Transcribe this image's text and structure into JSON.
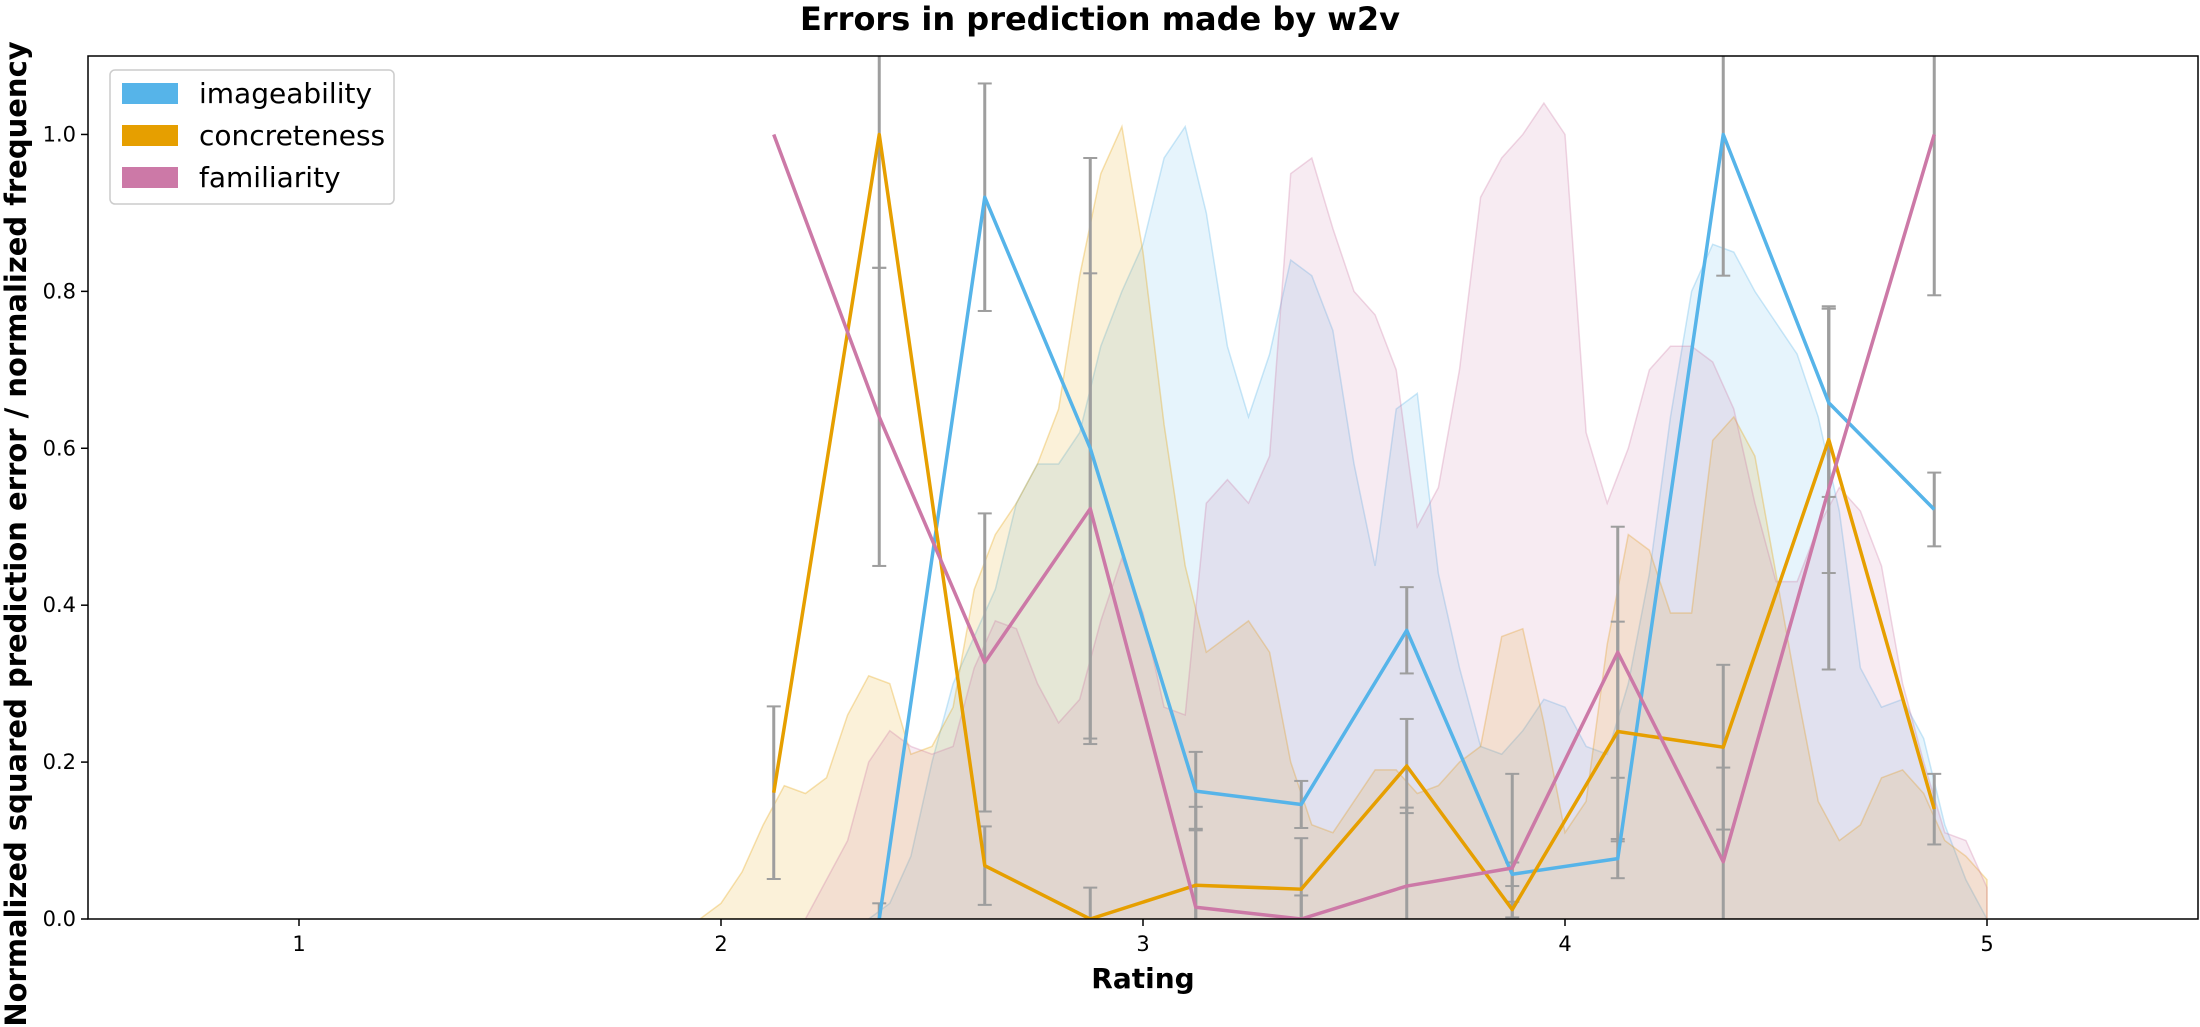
{
  "chart_data": {
    "type": "line",
    "title": "Errors in prediction made by w2v",
    "xlabel": "Rating",
    "ylabel": "Normalized squared prediction error / normalized frequency",
    "xlim": [
      0.5,
      5.5
    ],
    "ylim": [
      0,
      1.1
    ],
    "xticks": [
      "1",
      "2",
      "3",
      "4",
      "5"
    ],
    "yticks": [
      "0.0",
      "0.2",
      "0.4",
      "0.6",
      "0.8",
      "1.0"
    ],
    "legend_position": "top-left",
    "grid": false,
    "series": [
      {
        "name": "imageability",
        "color": "#56b4e9",
        "x": [
          2.375,
          2.625,
          2.875,
          3.125,
          3.375,
          3.625,
          3.875,
          4.125,
          4.375,
          4.625,
          4.875
        ],
        "y": [
          0.0,
          0.92,
          0.6,
          0.163,
          0.146,
          0.368,
          0.057,
          0.077,
          1.0,
          0.658,
          0.522
        ],
        "err": [
          0.02,
          0.145,
          0.37,
          0.05,
          0.03,
          0.055,
          0.015,
          0.025,
          0.18,
          0.12,
          0.047
        ]
      },
      {
        "name": "concreteness",
        "color": "#e69f00",
        "x": [
          2.125,
          2.375,
          2.625,
          2.875,
          3.125,
          3.375,
          3.625,
          3.875,
          4.125,
          4.375,
          4.625,
          4.875
        ],
        "y": [
          0.161,
          1.0,
          0.068,
          0.0,
          0.043,
          0.038,
          0.195,
          0.012,
          0.239,
          0.219,
          0.611,
          0.14
        ],
        "err": [
          0.11,
          0.17,
          0.05,
          0.04,
          0.1,
          0.065,
          0.06,
          0.01,
          0.14,
          0.105,
          0.17,
          0.045
        ]
      },
      {
        "name": "familiarity",
        "color": "#cc79a7",
        "x": [
          2.125,
          2.375,
          2.625,
          2.875,
          3.125,
          3.375,
          3.625,
          3.875,
          4.125,
          4.375,
          4.625,
          4.875
        ],
        "y": [
          1.0,
          0.64,
          0.327,
          0.523,
          0.015,
          0.0,
          0.042,
          0.065,
          0.34,
          0.073,
          0.548,
          1.0
        ],
        "err": [
          0.0,
          0.19,
          0.19,
          0.3,
          0.1,
          0.03,
          0.1,
          0.12,
          0.16,
          0.12,
          0.23,
          0.205
        ]
      }
    ],
    "frequency_areas": [
      {
        "name": "imageability",
        "color": "#56b4e9",
        "x": [
          2.35,
          2.4,
          2.45,
          2.5,
          2.55,
          2.6,
          2.65,
          2.7,
          2.75,
          2.8,
          2.85,
          2.9,
          2.95,
          3.0,
          3.05,
          3.1,
          3.15,
          3.2,
          3.25,
          3.3,
          3.35,
          3.4,
          3.45,
          3.5,
          3.55,
          3.6,
          3.65,
          3.7,
          3.75,
          3.8,
          3.85,
          3.9,
          3.95,
          4.0,
          4.05,
          4.1,
          4.15,
          4.2,
          4.25,
          4.3,
          4.35,
          4.4,
          4.45,
          4.5,
          4.55,
          4.6,
          4.65,
          4.7,
          4.75,
          4.8,
          4.85,
          4.9,
          4.95,
          5.0
        ],
        "y": [
          0.0,
          0.02,
          0.08,
          0.2,
          0.3,
          0.36,
          0.42,
          0.53,
          0.58,
          0.58,
          0.62,
          0.73,
          0.8,
          0.86,
          0.97,
          1.01,
          0.9,
          0.73,
          0.64,
          0.72,
          0.84,
          0.82,
          0.75,
          0.58,
          0.45,
          0.65,
          0.67,
          0.44,
          0.32,
          0.22,
          0.21,
          0.24,
          0.28,
          0.27,
          0.22,
          0.21,
          0.3,
          0.44,
          0.64,
          0.8,
          0.86,
          0.85,
          0.8,
          0.76,
          0.72,
          0.64,
          0.52,
          0.32,
          0.27,
          0.28,
          0.23,
          0.12,
          0.05,
          0.0
        ]
      },
      {
        "name": "concreteness",
        "color": "#e69f00",
        "x": [
          1.95,
          2.0,
          2.05,
          2.1,
          2.15,
          2.2,
          2.25,
          2.3,
          2.35,
          2.4,
          2.45,
          2.5,
          2.55,
          2.6,
          2.65,
          2.7,
          2.75,
          2.8,
          2.85,
          2.9,
          2.95,
          3.0,
          3.05,
          3.1,
          3.15,
          3.2,
          3.25,
          3.3,
          3.35,
          3.4,
          3.45,
          3.5,
          3.55,
          3.6,
          3.65,
          3.7,
          3.75,
          3.8,
          3.85,
          3.9,
          3.95,
          4.0,
          4.05,
          4.1,
          4.15,
          4.2,
          4.25,
          4.3,
          4.35,
          4.4,
          4.45,
          4.5,
          4.55,
          4.6,
          4.65,
          4.7,
          4.75,
          4.8,
          4.85,
          4.9,
          4.95,
          5.0
        ],
        "y": [
          0.0,
          0.02,
          0.06,
          0.12,
          0.17,
          0.16,
          0.18,
          0.26,
          0.31,
          0.3,
          0.21,
          0.22,
          0.27,
          0.42,
          0.49,
          0.53,
          0.58,
          0.65,
          0.82,
          0.95,
          1.01,
          0.85,
          0.63,
          0.45,
          0.34,
          0.36,
          0.38,
          0.34,
          0.2,
          0.12,
          0.11,
          0.15,
          0.19,
          0.19,
          0.16,
          0.17,
          0.2,
          0.22,
          0.36,
          0.37,
          0.25,
          0.11,
          0.15,
          0.35,
          0.49,
          0.47,
          0.39,
          0.39,
          0.61,
          0.64,
          0.59,
          0.44,
          0.29,
          0.15,
          0.1,
          0.12,
          0.18,
          0.19,
          0.16,
          0.1,
          0.08,
          0.05
        ]
      },
      {
        "name": "familiarity",
        "color": "#cc79a7",
        "x": [
          2.2,
          2.25,
          2.3,
          2.35,
          2.4,
          2.45,
          2.5,
          2.55,
          2.6,
          2.65,
          2.7,
          2.75,
          2.8,
          2.85,
          2.9,
          2.95,
          3.0,
          3.05,
          3.1,
          3.15,
          3.2,
          3.25,
          3.3,
          3.35,
          3.4,
          3.45,
          3.5,
          3.55,
          3.6,
          3.65,
          3.7,
          3.75,
          3.8,
          3.85,
          3.9,
          3.95,
          4.0,
          4.05,
          4.1,
          4.15,
          4.2,
          4.25,
          4.3,
          4.35,
          4.4,
          4.45,
          4.5,
          4.55,
          4.6,
          4.65,
          4.7,
          4.75,
          4.8,
          4.85,
          4.9,
          4.95,
          5.0
        ],
        "y": [
          0.0,
          0.05,
          0.1,
          0.2,
          0.24,
          0.22,
          0.21,
          0.22,
          0.32,
          0.38,
          0.37,
          0.3,
          0.25,
          0.28,
          0.38,
          0.46,
          0.39,
          0.27,
          0.26,
          0.53,
          0.56,
          0.53,
          0.59,
          0.95,
          0.97,
          0.88,
          0.8,
          0.77,
          0.7,
          0.5,
          0.55,
          0.7,
          0.92,
          0.97,
          1.0,
          1.04,
          1.0,
          0.62,
          0.53,
          0.6,
          0.7,
          0.73,
          0.73,
          0.71,
          0.65,
          0.53,
          0.43,
          0.43,
          0.5,
          0.55,
          0.52,
          0.45,
          0.3,
          0.2,
          0.11,
          0.1,
          0.04
        ]
      }
    ]
  }
}
